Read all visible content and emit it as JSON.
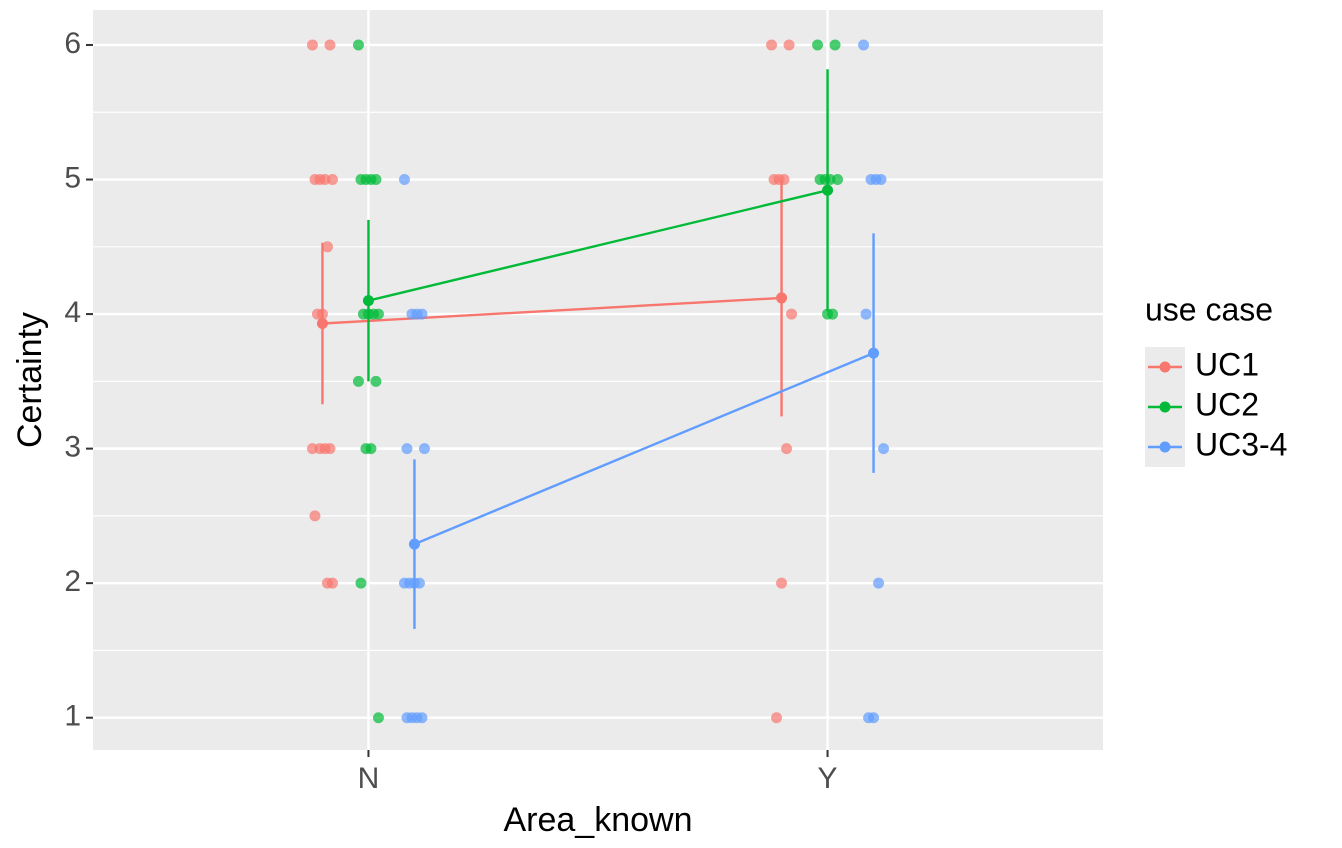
{
  "chart_data": {
    "type": "pointrange-line",
    "x_label": "Area_known",
    "y_label": "Certainty",
    "categories": [
      "N",
      "Y"
    ],
    "ylim": [
      0.76,
      6.26
    ],
    "yticks": [
      1,
      2,
      3,
      4,
      5,
      6
    ],
    "grid": true,
    "legend_title": "use case",
    "legend_position": "right",
    "series": [
      {
        "name": "UC1",
        "color": "#F8766D",
        "values": [
          3.93,
          4.12
        ],
        "errors": [
          0.6,
          0.88
        ],
        "points": [
          [
            6,
            6,
            5,
            5,
            5,
            5,
            4.5,
            4,
            4,
            3,
            3,
            3,
            3,
            2.5,
            2,
            2
          ],
          [
            6,
            6,
            5,
            5,
            5,
            4,
            3,
            2,
            1
          ]
        ]
      },
      {
        "name": "UC2",
        "color": "#00BA38",
        "values": [
          4.1,
          4.92
        ],
        "errors": [
          0.6,
          0.9
        ],
        "points": [
          [
            6,
            5,
            5,
            5,
            5,
            4,
            4,
            4,
            4,
            3.5,
            3.5,
            3,
            3,
            2,
            1
          ],
          [
            6,
            6,
            5,
            5,
            5,
            5,
            4,
            4
          ]
        ]
      },
      {
        "name": "UC3-4",
        "color": "#619CFF",
        "values": [
          2.29,
          3.71
        ],
        "errors": [
          0.63,
          0.89
        ],
        "points": [
          [
            5,
            4,
            4,
            4,
            3,
            3,
            2,
            2,
            2,
            2,
            1,
            1,
            1,
            1
          ],
          [
            6,
            5,
            5,
            5,
            4,
            3,
            2,
            1,
            1
          ]
        ]
      }
    ]
  }
}
